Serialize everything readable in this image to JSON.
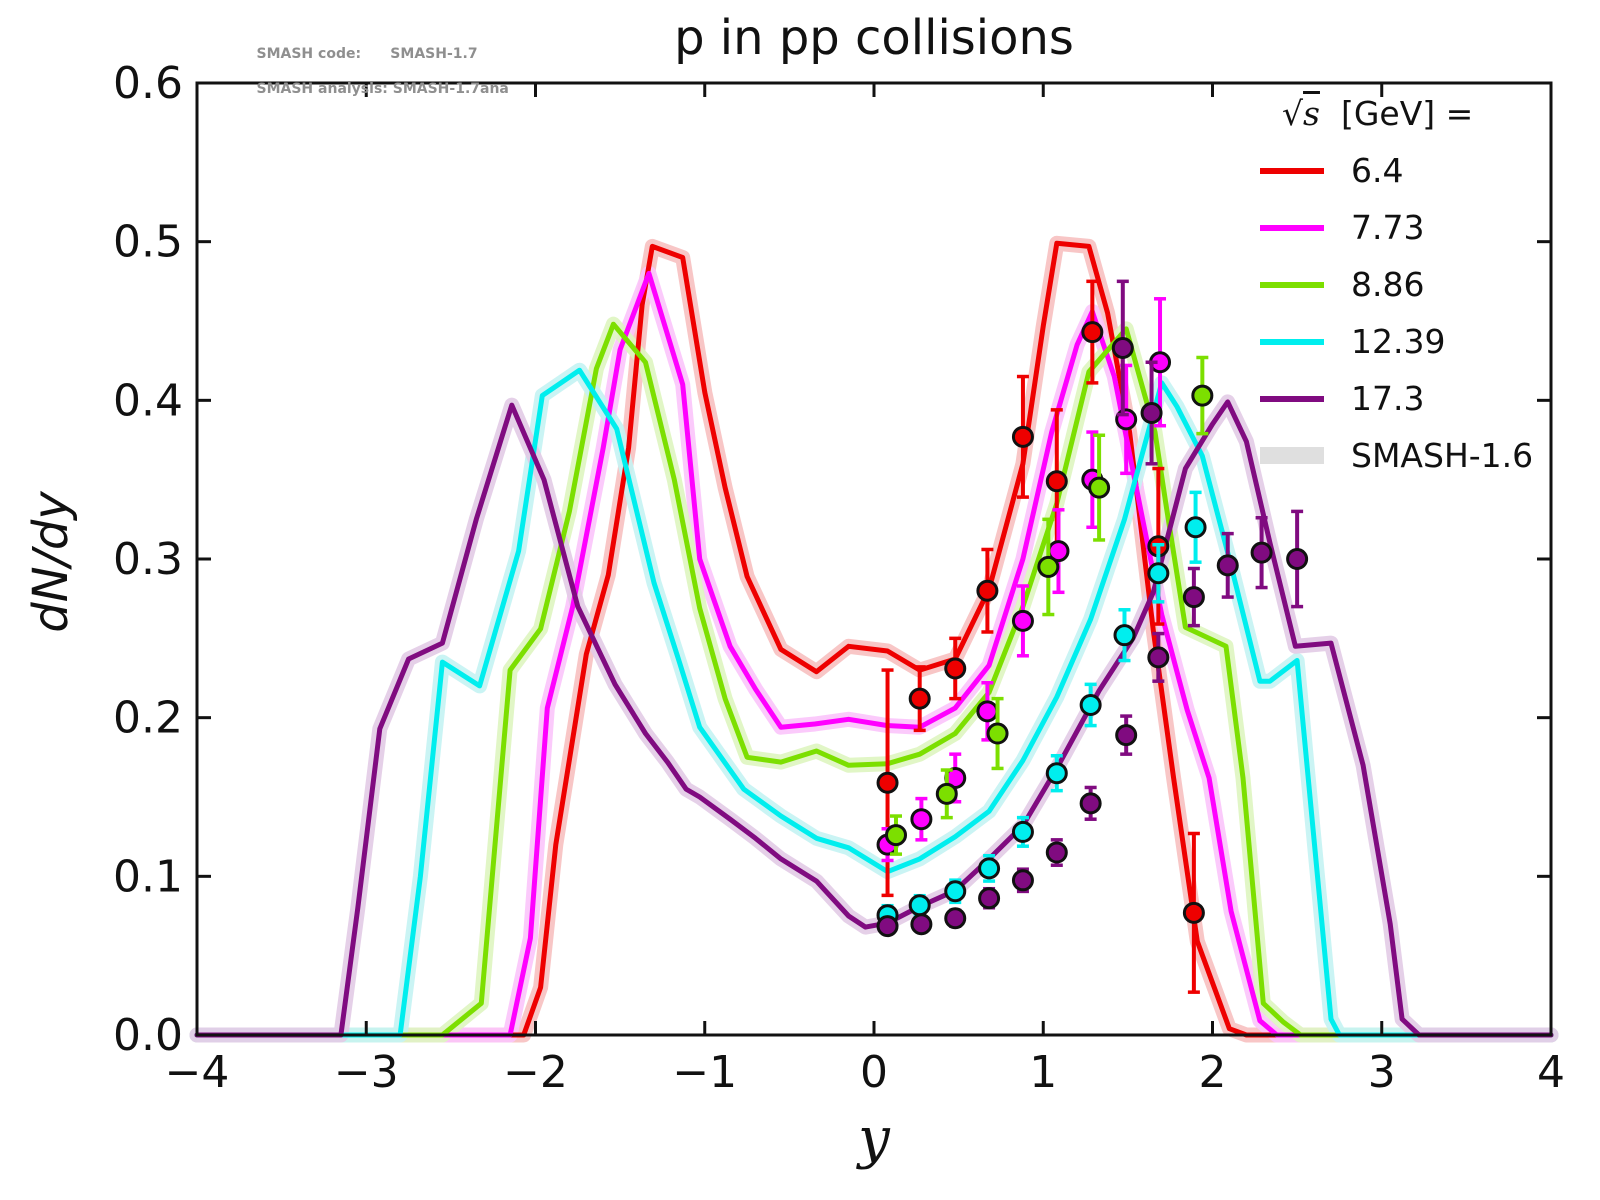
{
  "title": "p in pp collisions",
  "annotation": {
    "line1": "SMASH code:      SMASH-1.7",
    "line2": "SMASH analysis: SMASH-1.7ana"
  },
  "axes": {
    "xlabel": "y",
    "ylabel": "dN/dy",
    "xlim": [
      -4,
      4
    ],
    "ylim": [
      0,
      0.6
    ],
    "xticks": [
      -4,
      -3,
      -2,
      -1,
      0,
      1,
      2,
      3,
      4
    ],
    "xtick_labels": [
      "−4",
      "−3",
      "−2",
      "−1",
      "0",
      "1",
      "2",
      "3",
      "4"
    ],
    "yticks": [
      0.0,
      0.1,
      0.2,
      0.3,
      0.4,
      0.5,
      0.6
    ],
    "ytick_labels": [
      "0.0",
      "0.1",
      "0.2",
      "0.3",
      "0.4",
      "0.5",
      "0.6"
    ],
    "grid": false
  },
  "legend": {
    "title": {
      "radical": "√",
      "symbol": "s",
      "rest": "  [GeV] ="
    },
    "position": "upper right",
    "entries": [
      {
        "label": "6.4",
        "color": "#ee0000",
        "type": "line"
      },
      {
        "label": "7.73",
        "color": "#ff00ff",
        "type": "line"
      },
      {
        "label": "8.86",
        "color": "#7cdf00",
        "type": "line"
      },
      {
        "label": "12.39",
        "color": "#00eeee",
        "type": "line"
      },
      {
        "label": "17.3",
        "color": "#800b80",
        "type": "line"
      },
      {
        "label": "SMASH-1.6",
        "color": "#dfdfdf",
        "type": "band"
      }
    ]
  },
  "chart_data": {
    "type": "line",
    "title": "p in pp collisions",
    "xlabel": "y",
    "ylabel": "dN/dy",
    "xlim": [
      -4,
      4
    ],
    "ylim": [
      0,
      0.6
    ],
    "series": [
      {
        "name": "6.4",
        "color": "#ee0000",
        "band_color": "#f7c0c0",
        "points": [
          [
            -4,
            0
          ],
          [
            -2.07,
            0
          ],
          [
            -1.97,
            0.03
          ],
          [
            -1.88,
            0.12
          ],
          [
            -1.7,
            0.24
          ],
          [
            -1.57,
            0.29
          ],
          [
            -1.45,
            0.37
          ],
          [
            -1.37,
            0.46
          ],
          [
            -1.31,
            0.497
          ],
          [
            -1.13,
            0.49
          ],
          [
            -1.0,
            0.405
          ],
          [
            -0.88,
            0.345
          ],
          [
            -0.75,
            0.289
          ],
          [
            -0.55,
            0.243
          ],
          [
            -0.34,
            0.229
          ],
          [
            -0.15,
            0.245
          ],
          [
            0.08,
            0.242
          ],
          [
            0.27,
            0.23
          ],
          [
            0.48,
            0.237
          ],
          [
            0.68,
            0.281
          ],
          [
            0.88,
            0.36
          ],
          [
            1.0,
            0.447
          ],
          [
            1.08,
            0.499
          ],
          [
            1.27,
            0.497
          ],
          [
            1.38,
            0.455
          ],
          [
            1.51,
            0.38
          ],
          [
            1.65,
            0.255
          ],
          [
            1.77,
            0.162
          ],
          [
            1.91,
            0.059
          ],
          [
            2.1,
            0.004
          ],
          [
            2.2,
            0
          ],
          [
            4,
            0
          ]
        ]
      },
      {
        "name": "7.73",
        "color": "#ff00ff",
        "band_color": "#fbc4fb",
        "points": [
          [
            -4,
            0
          ],
          [
            -2.15,
            0
          ],
          [
            -2.03,
            0.061
          ],
          [
            -1.93,
            0.206
          ],
          [
            -1.78,
            0.27
          ],
          [
            -1.6,
            0.37
          ],
          [
            -1.5,
            0.432
          ],
          [
            -1.33,
            0.48
          ],
          [
            -1.13,
            0.41
          ],
          [
            -1.03,
            0.3
          ],
          [
            -0.85,
            0.245
          ],
          [
            -0.7,
            0.218
          ],
          [
            -0.55,
            0.194
          ],
          [
            -0.35,
            0.196
          ],
          [
            -0.15,
            0.199
          ],
          [
            0.08,
            0.195
          ],
          [
            0.27,
            0.194
          ],
          [
            0.48,
            0.206
          ],
          [
            0.68,
            0.233
          ],
          [
            0.88,
            0.3
          ],
          [
            1.05,
            0.38
          ],
          [
            1.2,
            0.435
          ],
          [
            1.29,
            0.456
          ],
          [
            1.42,
            0.415
          ],
          [
            1.55,
            0.345
          ],
          [
            1.7,
            0.265
          ],
          [
            1.85,
            0.205
          ],
          [
            1.98,
            0.162
          ],
          [
            2.11,
            0.078
          ],
          [
            2.28,
            0.009
          ],
          [
            2.38,
            0
          ],
          [
            4,
            0
          ]
        ]
      },
      {
        "name": "8.86",
        "color": "#7cdf00",
        "band_color": "#def5c0",
        "points": [
          [
            -4,
            0
          ],
          [
            -2.55,
            0
          ],
          [
            -2.32,
            0.02
          ],
          [
            -2.15,
            0.23
          ],
          [
            -1.97,
            0.256
          ],
          [
            -1.8,
            0.33
          ],
          [
            -1.64,
            0.42
          ],
          [
            -1.54,
            0.448
          ],
          [
            -1.35,
            0.424
          ],
          [
            -1.18,
            0.35
          ],
          [
            -1.03,
            0.269
          ],
          [
            -0.88,
            0.212
          ],
          [
            -0.75,
            0.175
          ],
          [
            -0.55,
            0.172
          ],
          [
            -0.34,
            0.179
          ],
          [
            -0.15,
            0.17
          ],
          [
            0.08,
            0.171
          ],
          [
            0.27,
            0.177
          ],
          [
            0.48,
            0.19
          ],
          [
            0.68,
            0.216
          ],
          [
            0.88,
            0.27
          ],
          [
            1.08,
            0.335
          ],
          [
            1.27,
            0.418
          ],
          [
            1.49,
            0.445
          ],
          [
            1.66,
            0.38
          ],
          [
            1.73,
            0.331
          ],
          [
            1.84,
            0.257
          ],
          [
            2.08,
            0.245
          ],
          [
            2.18,
            0.162
          ],
          [
            2.3,
            0.02
          ],
          [
            2.42,
            0.008
          ],
          [
            2.52,
            0
          ],
          [
            4,
            0
          ]
        ]
      },
      {
        "name": "12.39",
        "color": "#00eeee",
        "band_color": "#c4f3f3",
        "points": [
          [
            -4,
            0
          ],
          [
            -2.8,
            0
          ],
          [
            -2.68,
            0.1
          ],
          [
            -2.55,
            0.235
          ],
          [
            -2.33,
            0.22
          ],
          [
            -2.1,
            0.305
          ],
          [
            -1.96,
            0.403
          ],
          [
            -1.74,
            0.419
          ],
          [
            -1.52,
            0.382
          ],
          [
            -1.3,
            0.285
          ],
          [
            -1.15,
            0.235
          ],
          [
            -1.03,
            0.194
          ],
          [
            -0.77,
            0.155
          ],
          [
            -0.55,
            0.138
          ],
          [
            -0.34,
            0.124
          ],
          [
            -0.15,
            0.118
          ],
          [
            0.08,
            0.103
          ],
          [
            0.27,
            0.111
          ],
          [
            0.48,
            0.125
          ],
          [
            0.68,
            0.141
          ],
          [
            0.88,
            0.173
          ],
          [
            1.08,
            0.213
          ],
          [
            1.28,
            0.262
          ],
          [
            1.48,
            0.325
          ],
          [
            1.62,
            0.38
          ],
          [
            1.7,
            0.411
          ],
          [
            1.79,
            0.396
          ],
          [
            1.94,
            0.365
          ],
          [
            2.1,
            0.3
          ],
          [
            2.28,
            0.223
          ],
          [
            2.34,
            0.223
          ],
          [
            2.5,
            0.236
          ],
          [
            2.7,
            0.01
          ],
          [
            2.75,
            0
          ],
          [
            4,
            0
          ]
        ]
      },
      {
        "name": "17.3",
        "color": "#800b80",
        "band_color": "#e2cbe6",
        "points": [
          [
            -4,
            0
          ],
          [
            -3.15,
            0
          ],
          [
            -3.05,
            0.08
          ],
          [
            -2.92,
            0.193
          ],
          [
            -2.75,
            0.237
          ],
          [
            -2.55,
            0.247
          ],
          [
            -2.35,
            0.325
          ],
          [
            -2.14,
            0.397
          ],
          [
            -1.95,
            0.35
          ],
          [
            -1.75,
            0.27
          ],
          [
            -1.53,
            0.221
          ],
          [
            -1.35,
            0.19
          ],
          [
            -1.22,
            0.172
          ],
          [
            -1.11,
            0.155
          ],
          [
            -1.03,
            0.15
          ],
          [
            -0.85,
            0.136
          ],
          [
            -0.7,
            0.124
          ],
          [
            -0.55,
            0.111
          ],
          [
            -0.34,
            0.097
          ],
          [
            -0.15,
            0.075
          ],
          [
            -0.05,
            0.068
          ],
          [
            0.08,
            0.0705
          ],
          [
            0.27,
            0.081
          ],
          [
            0.48,
            0.091
          ],
          [
            0.68,
            0.111
          ],
          [
            0.88,
            0.132
          ],
          [
            1.08,
            0.168
          ],
          [
            1.33,
            0.217
          ],
          [
            1.53,
            0.25
          ],
          [
            1.65,
            0.279
          ],
          [
            1.84,
            0.357
          ],
          [
            2.0,
            0.385
          ],
          [
            2.09,
            0.399
          ],
          [
            2.2,
            0.374
          ],
          [
            2.34,
            0.31
          ],
          [
            2.49,
            0.245
          ],
          [
            2.7,
            0.247
          ],
          [
            2.89,
            0.17
          ],
          [
            3.05,
            0.07
          ],
          [
            3.12,
            0.01
          ],
          [
            3.22,
            0
          ],
          [
            4,
            0
          ]
        ]
      }
    ],
    "data_points": [
      {
        "name": "6.4",
        "color": "#ee0000",
        "points": [
          [
            0.08,
            0.159,
            0.071
          ],
          [
            0.27,
            0.212,
            0.02
          ],
          [
            0.48,
            0.231,
            0.019
          ],
          [
            0.67,
            0.28,
            0.026
          ],
          [
            0.88,
            0.377,
            0.038
          ],
          [
            1.08,
            0.349,
            0.045
          ],
          [
            1.29,
            0.443,
            0.032
          ],
          [
            1.68,
            0.308,
            0.049
          ],
          [
            1.89,
            0.077,
            0.05
          ]
        ]
      },
      {
        "name": "7.73",
        "color": "#ff00ff",
        "points": [
          [
            0.08,
            0.12,
            0.01
          ],
          [
            0.28,
            0.136,
            0.013
          ],
          [
            0.48,
            0.162,
            0.015
          ],
          [
            0.67,
            0.204,
            0.018
          ],
          [
            0.88,
            0.261,
            0.022
          ],
          [
            1.09,
            0.305,
            0.026
          ],
          [
            1.29,
            0.35,
            0.03
          ],
          [
            1.49,
            0.388,
            0.034
          ],
          [
            1.69,
            0.424,
            0.04
          ]
        ]
      },
      {
        "name": "8.86",
        "color": "#7cdf00",
        "points": [
          [
            0.13,
            0.126,
            0.012
          ],
          [
            0.43,
            0.152,
            0.015
          ],
          [
            0.73,
            0.19,
            0.022
          ],
          [
            1.03,
            0.295,
            0.03
          ],
          [
            1.33,
            0.345,
            0.033
          ],
          [
            1.94,
            0.403,
            0.024
          ]
        ]
      },
      {
        "name": "12.39",
        "color": "#00eeee",
        "points": [
          [
            0.08,
            0.0755,
            0.006
          ],
          [
            0.27,
            0.0818,
            0.006
          ],
          [
            0.48,
            0.0906,
            0.007
          ],
          [
            0.68,
            0.105,
            0.008
          ],
          [
            0.88,
            0.128,
            0.009
          ],
          [
            1.08,
            0.165,
            0.011
          ],
          [
            1.28,
            0.208,
            0.013
          ],
          [
            1.48,
            0.252,
            0.016
          ],
          [
            1.68,
            0.291,
            0.018
          ],
          [
            1.9,
            0.32,
            0.022
          ]
        ]
      },
      {
        "name": "17.3",
        "color": "#800b80",
        "points": [
          [
            0.08,
            0.0686,
            0.004
          ],
          [
            0.28,
            0.0698,
            0.004
          ],
          [
            0.48,
            0.0736,
            0.005
          ],
          [
            0.68,
            0.0862,
            0.006
          ],
          [
            0.88,
            0.0975,
            0.007
          ],
          [
            1.08,
            0.115,
            0.008
          ],
          [
            1.28,
            0.146,
            0.01
          ],
          [
            1.49,
            0.189,
            0.012
          ],
          [
            1.68,
            0.238,
            0.015
          ],
          [
            1.89,
            0.276,
            0.018
          ],
          [
            2.09,
            0.296,
            0.02
          ],
          [
            2.29,
            0.304,
            0.022
          ],
          [
            2.5,
            0.3,
            0.03
          ],
          [
            1.47,
            0.433,
            0.042
          ],
          [
            1.64,
            0.392,
            0.032
          ]
        ]
      }
    ],
    "legend_position": "upper right",
    "grid": false
  }
}
